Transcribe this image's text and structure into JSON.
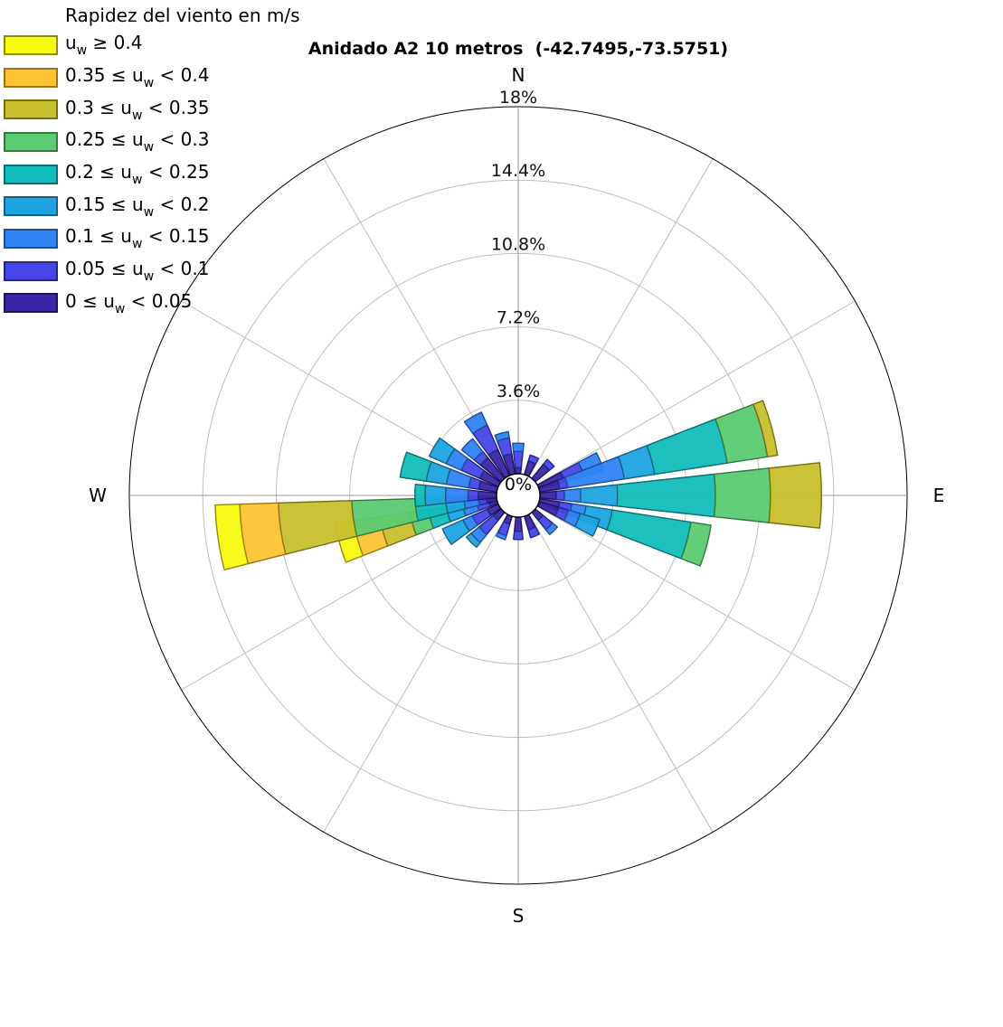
{
  "chart_data": {
    "type": "polar-stacked-bar",
    "title": "Anidado A2 10 metros  (-42.7495,-73.5751)",
    "legend_title": "Rapidez del viento en m/s",
    "legend_position": "top-left",
    "directions": [
      {
        "label": "N",
        "deg": 0
      },
      {
        "label": "E",
        "deg": 90
      },
      {
        "label": "S",
        "deg": 180
      },
      {
        "label": "W",
        "deg": 270
      }
    ],
    "radial_ticks": [
      "3.6%",
      "7.2%",
      "10.8%",
      "14.4%",
      "18%"
    ],
    "center_label": "0%",
    "r_max": 18,
    "grid": true,
    "bins": [
      {
        "var": "u",
        "sub": "w",
        "label": "0 ≤ u_w < 0.05",
        "pre": "0 ≤ ",
        "post": " < 0.05",
        "color": "#3a26a6",
        "edge": "#1c1458"
      },
      {
        "var": "u",
        "sub": "w",
        "label": "0.05 ≤ u_w < 0.1",
        "pre": "0.05 ≤ ",
        "post": " < 0.1",
        "color": "#4646e9",
        "edge": "#262680"
      },
      {
        "var": "u",
        "sub": "w",
        "label": "0.1 ≤ u_w < 0.15",
        "pre": "0.1 ≤ ",
        "post": " < 0.15",
        "color": "#2f83f5",
        "edge": "#1d4e93"
      },
      {
        "var": "u",
        "sub": "w",
        "label": "0.15 ≤ u_w < 0.2",
        "pre": "0.15 ≤ ",
        "post": " < 0.2",
        "color": "#1ea4e0",
        "edge": "#126280"
      },
      {
        "var": "u",
        "sub": "w",
        "label": "0.2 ≤ u_w < 0.25",
        "pre": "0.2 ≤ ",
        "post": " < 0.25",
        "color": "#12bcbc",
        "edge": "#0b6e6e"
      },
      {
        "var": "u",
        "sub": "w",
        "label": "0.25 ≤ u_w < 0.3",
        "pre": "0.25 ≤ ",
        "post": " < 0.3",
        "color": "#5bcb71",
        "edge": "#357841"
      },
      {
        "var": "u",
        "sub": "w",
        "label": "0.3 ≤ u_w < 0.35",
        "pre": "0.3 ≤ ",
        "post": " < 0.35",
        "color": "#c8c02c",
        "edge": "#756f17"
      },
      {
        "var": "u",
        "sub": "w",
        "label": "0.35 ≤ u_w < 0.4",
        "pre": "0.35 ≤ ",
        "post": " < 0.4",
        "color": "#fdc333",
        "edge": "#9a721a"
      },
      {
        "var": "u",
        "sub": "w",
        "label": "u_w ≥ 0.4",
        "pre": "",
        "post": " ≥ 0.4",
        "color": "#f8fa10",
        "edge": "#8c8c08"
      }
    ],
    "sectors": [
      {
        "center_deg": 0,
        "cum": [
          0.3,
          1.1,
          1.5
        ]
      },
      {
        "center_deg": 22.5,
        "cum": [
          0.7,
          1.0
        ]
      },
      {
        "center_deg": 45,
        "cum": [
          0.9,
          1.2
        ]
      },
      {
        "center_deg": 67.5,
        "cum": [
          1.3,
          2.3,
          3.3
        ]
      },
      {
        "center_deg": 75,
        "cum": [
          1.0,
          1.4,
          4.2,
          5.7,
          9.3,
          11.3,
          11.8
        ]
      },
      {
        "center_deg": 90,
        "cum": [
          0.8,
          1.2,
          2.0,
          3.8,
          8.6,
          11.3,
          13.8
        ]
      },
      {
        "center_deg": 105,
        "cum": [
          1.0,
          1.6,
          2.3,
          3.6,
          7.5,
          8.5
        ]
      },
      {
        "center_deg": 112.5,
        "cum": [
          1.0,
          1.5,
          2.1,
          3.1
        ]
      },
      {
        "center_deg": 135,
        "cum": [
          0.5,
          1.1,
          1.4
        ]
      },
      {
        "center_deg": 157.5,
        "cum": [
          0.7,
          1.1
        ]
      },
      {
        "center_deg": 180,
        "cum": [
          0.7,
          1.1
        ]
      },
      {
        "center_deg": 202.5,
        "cum": [
          0.4,
          1.0,
          1.2
        ]
      },
      {
        "center_deg": 225,
        "cum": [
          0.5,
          1.4,
          1.9,
          2.2
        ]
      },
      {
        "center_deg": 240,
        "cum": [
          0.6,
          1.4,
          1.9,
          3.0
        ]
      },
      {
        "center_deg": 255,
        "cum": [
          0.4,
          1.0,
          1.7,
          2.5,
          3.4,
          4.3,
          5.8,
          7.1,
          8.0
        ]
      },
      {
        "center_deg": 262,
        "cum": [
          0.5,
          0.9,
          1.6,
          2.5,
          4.0,
          7.1,
          10.7,
          12.6,
          13.8
        ]
      },
      {
        "center_deg": 270,
        "cum": [
          0.9,
          1.4,
          2.5,
          3.5,
          4.0
        ]
      },
      {
        "center_deg": 285,
        "cum": [
          0.9,
          1.4,
          2.5,
          3.5,
          4.8
        ]
      },
      {
        "center_deg": 300,
        "cum": [
          1.0,
          2.0,
          2.8,
          3.7
        ]
      },
      {
        "center_deg": 315,
        "cum": [
          1.3,
          1.7,
          2.5
        ]
      },
      {
        "center_deg": 330,
        "cum": [
          1.4,
          2.7,
          3.4
        ]
      },
      {
        "center_deg": 345,
        "cum": [
          1.0,
          1.8,
          2.1
        ]
      }
    ]
  }
}
